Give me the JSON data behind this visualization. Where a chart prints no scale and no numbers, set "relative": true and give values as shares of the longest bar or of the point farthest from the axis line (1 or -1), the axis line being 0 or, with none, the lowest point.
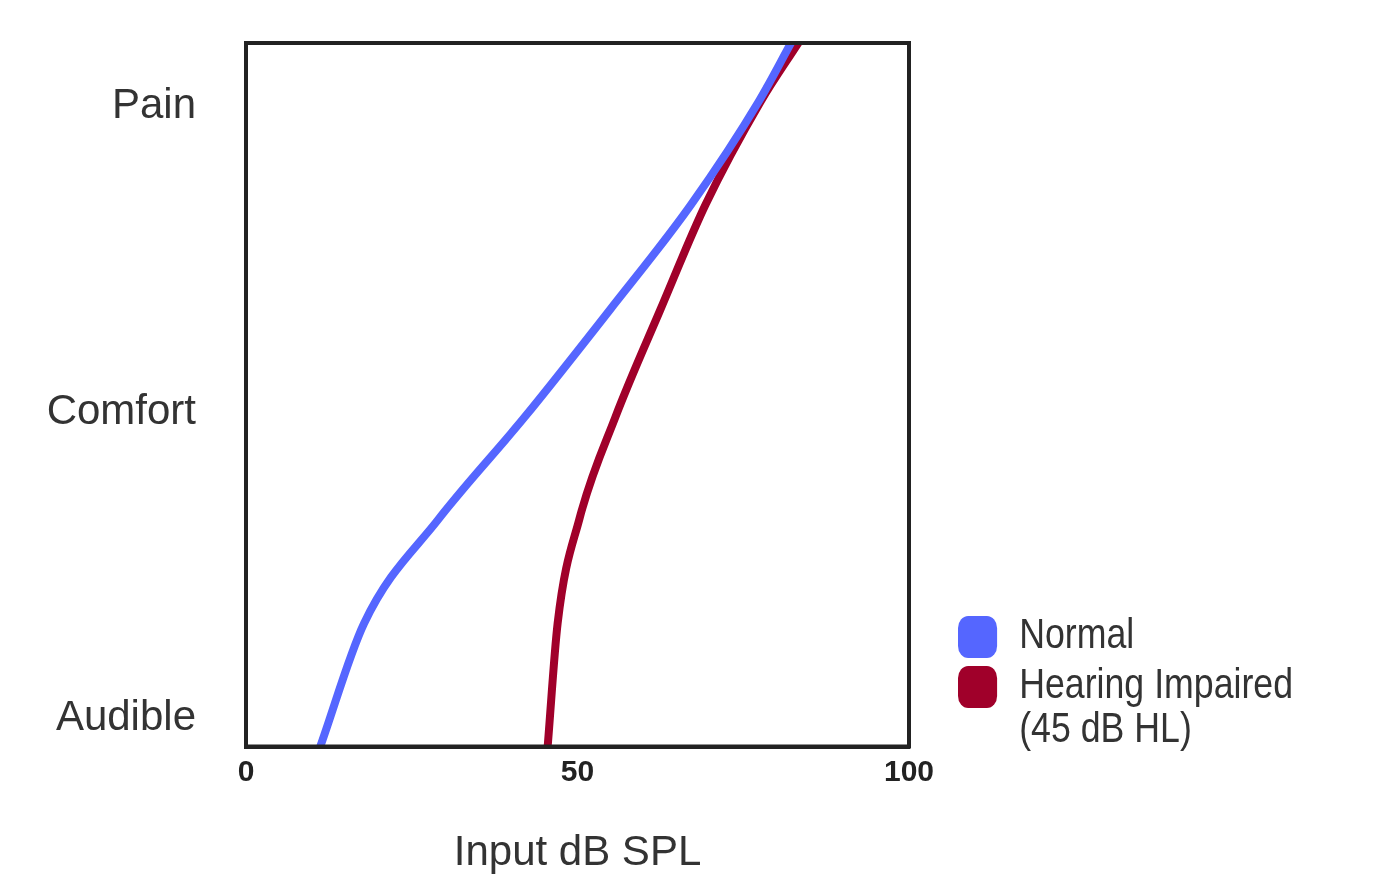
{
  "chart_data": {
    "type": "line",
    "xlabel": "Input dB SPL",
    "xlim": [
      0,
      100
    ],
    "xticks": [
      0,
      50,
      100
    ],
    "relative": true,
    "annotations": [
      "Pain",
      "Comfort",
      "Audible"
    ],
    "grid": false,
    "legend": "bottom right",
    "marker": "none",
    "line_style": "solid",
    "series": [
      {
        "name": "Normal",
        "color": "#5566ff",
        "x": [
          11.2,
          17.8,
          29.1,
          42.0,
          54.9,
          67.1,
          77.4,
          82.2
        ],
        "values": [
          0,
          0.175,
          0.324,
          0.468,
          0.621,
          0.77,
          0.918,
          1
        ]
      },
      {
        "name": "Hearing Impaired (45 dB HL)",
        "color": "#a0002a",
        "x": [
          45.5,
          47.0,
          50.3,
          55.7,
          62.5,
          69.3,
          77.7,
          83.3
        ],
        "values": [
          0,
          0.175,
          0.324,
          0.468,
          0.621,
          0.77,
          0.918,
          1
        ]
      }
    ]
  }
}
